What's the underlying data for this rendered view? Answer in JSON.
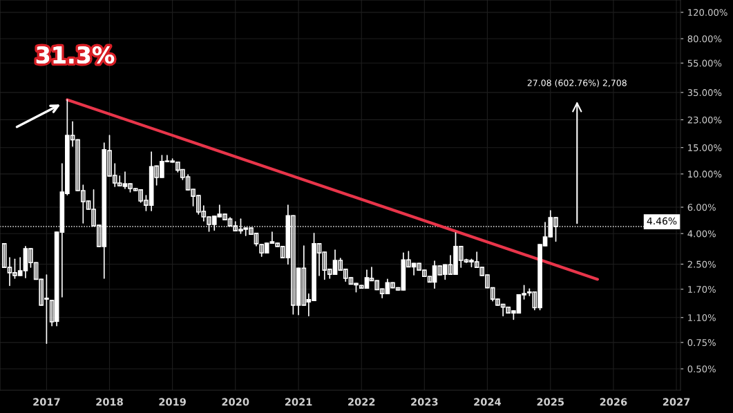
{
  "chart_data": {
    "type": "candlestick",
    "color": "#ffffff",
    "x": [
      "2016-05",
      "2016-06",
      "2016-07",
      "2016-08",
      "2016-09",
      "2016-10",
      "2016-11",
      "2016-12",
      "2017-01",
      "2017-02",
      "2017-03",
      "2017-04",
      "2017-05",
      "2017-06",
      "2017-07",
      "2017-08",
      "2017-09",
      "2017-10",
      "2017-11",
      "2017-12",
      "2018-01",
      "2018-02",
      "2018-03",
      "2018-04",
      "2018-05",
      "2018-06",
      "2018-07",
      "2018-08",
      "2018-09",
      "2018-10",
      "2018-11",
      "2018-12",
      "2019-01",
      "2019-02",
      "2019-03",
      "2019-04",
      "2019-05",
      "2019-06",
      "2019-07",
      "2019-08",
      "2019-09",
      "2019-10",
      "2019-11",
      "2019-12",
      "2020-01",
      "2020-02",
      "2020-03",
      "2020-04",
      "2020-05",
      "2020-06",
      "2020-07",
      "2020-08",
      "2020-09",
      "2020-10",
      "2020-11",
      "2020-12",
      "2021-01",
      "2021-02",
      "2021-03",
      "2021-04",
      "2021-05",
      "2021-06",
      "2021-07",
      "2021-08",
      "2021-09",
      "2021-10",
      "2021-11",
      "2021-12",
      "2022-01",
      "2022-02",
      "2022-03",
      "2022-04",
      "2022-05",
      "2022-06",
      "2022-07",
      "2022-08",
      "2022-09",
      "2022-10",
      "2022-11",
      "2022-12",
      "2023-01",
      "2023-02",
      "2023-03",
      "2023-04",
      "2023-05",
      "2023-06",
      "2023-07",
      "2023-08",
      "2023-09",
      "2023-10",
      "2023-11",
      "2023-12",
      "2024-01",
      "2024-02",
      "2024-03",
      "2024-04",
      "2024-05",
      "2024-06",
      "2024-07",
      "2024-08",
      "2024-09",
      "2024-10",
      "2024-11",
      "2024-12",
      "2025-01",
      "2025-02"
    ],
    "ohlc": [
      [
        3.42,
        3.42,
        2.38,
        2.38
      ],
      [
        2.38,
        2.76,
        1.8,
        2.19
      ],
      [
        2.19,
        2.7,
        2.01,
        2.1
      ],
      [
        2.1,
        2.76,
        2.1,
        2.26
      ],
      [
        2.26,
        3.28,
        2.03,
        3.17
      ],
      [
        3.17,
        3.17,
        2.38,
        2.56
      ],
      [
        2.56,
        2.56,
        1.98,
        1.98
      ],
      [
        1.98,
        1.98,
        1.33,
        1.33
      ],
      [
        1.46,
        2.12,
        0.74,
        1.48
      ],
      [
        1.43,
        1.43,
        0.97,
        1.03
      ],
      [
        1.04,
        4.09,
        0.97,
        4.09
      ],
      [
        4.09,
        11.7,
        1.51,
        7.58
      ],
      [
        7.41,
        31.3,
        7.25,
        18.1
      ],
      [
        18.1,
        22.3,
        15.3,
        16.9
      ],
      [
        16.9,
        16.9,
        7.74,
        7.74
      ],
      [
        7.74,
        8.43,
        4.7,
        6.53
      ],
      [
        6.6,
        6.6,
        5.81,
        5.81
      ],
      [
        5.81,
        7.83,
        4.5,
        4.5
      ],
      [
        4.55,
        4.55,
        3.28,
        3.28
      ],
      [
        3.28,
        16.1,
        2.01,
        14.5
      ],
      [
        14.3,
        18.1,
        9.68,
        9.68
      ],
      [
        9.78,
        11.7,
        8.25,
        8.7
      ],
      [
        8.7,
        9.68,
        8.34,
        8.34
      ],
      [
        8.25,
        10.3,
        7.99,
        8.6
      ],
      [
        8.6,
        8.6,
        7.58,
        7.99
      ],
      [
        7.99,
        7.99,
        7.74,
        7.74
      ],
      [
        7.83,
        7.83,
        6.46,
        6.6
      ],
      [
        6.67,
        7.18,
        5.69,
        6.19
      ],
      [
        6.19,
        14.0,
        5.69,
        11.2
      ],
      [
        11.3,
        11.3,
        8.43,
        9.47
      ],
      [
        9.47,
        13.3,
        9.47,
        12.1
      ],
      [
        12.1,
        13.3,
        12.1,
        12.2
      ],
      [
        12.2,
        12.6,
        12.0,
        12.0
      ],
      [
        12.0,
        12.0,
        10.3,
        10.6
      ],
      [
        10.7,
        10.7,
        9.17,
        9.47
      ],
      [
        9.57,
        9.88,
        7.83,
        7.83
      ],
      [
        7.91,
        7.91,
        6.13,
        7.1
      ],
      [
        7.18,
        7.18,
        5.39,
        5.57
      ],
      [
        5.63,
        6.13,
        4.85,
        5.17
      ],
      [
        5.17,
        5.17,
        4.14,
        4.6
      ],
      [
        4.6,
        5.22,
        4.22,
        5.22
      ],
      [
        5.17,
        6.19,
        5.17,
        5.39
      ],
      [
        5.39,
        5.39,
        4.95,
        4.95
      ],
      [
        5.0,
        5.11,
        4.5,
        4.5
      ],
      [
        4.5,
        4.8,
        4.18,
        4.18
      ],
      [
        4.27,
        5.0,
        4.01,
        4.18
      ],
      [
        4.27,
        4.36,
        3.88,
        4.36
      ],
      [
        4.36,
        4.36,
        3.96,
        3.96
      ],
      [
        4.01,
        4.01,
        3.31,
        3.42
      ],
      [
        3.38,
        3.38,
        2.82,
        2.97
      ],
      [
        2.97,
        3.45,
        2.97,
        3.45
      ],
      [
        3.45,
        4.09,
        3.45,
        3.53
      ],
      [
        3.45,
        3.45,
        3.28,
        3.28
      ],
      [
        3.28,
        3.28,
        2.76,
        2.76
      ],
      [
        2.76,
        6.19,
        2.5,
        5.27
      ],
      [
        5.27,
        5.27,
        1.16,
        1.33
      ],
      [
        1.33,
        2.35,
        1.15,
        2.35
      ],
      [
        2.35,
        3.31,
        1.33,
        1.33
      ],
      [
        1.4,
        1.58,
        1.13,
        1.45
      ],
      [
        1.43,
        4.01,
        1.43,
        3.42
      ],
      [
        3.42,
        3.42,
        2.1,
        2.97
      ],
      [
        3.01,
        3.01,
        1.98,
        2.28
      ],
      [
        2.31,
        2.31,
        2.01,
        2.14
      ],
      [
        2.14,
        3.1,
        2.14,
        2.65
      ],
      [
        2.65,
        2.73,
        2.28,
        2.28
      ],
      [
        2.31,
        2.31,
        1.92,
        2.01
      ],
      [
        2.03,
        2.03,
        1.84,
        1.84
      ],
      [
        1.86,
        1.86,
        1.63,
        1.82
      ],
      [
        1.8,
        1.8,
        1.73,
        1.73
      ],
      [
        1.73,
        2.28,
        1.73,
        2.03
      ],
      [
        2.01,
        2.38,
        1.94,
        1.94
      ],
      [
        1.94,
        1.94,
        1.69,
        1.69
      ],
      [
        1.71,
        1.71,
        1.49,
        1.59
      ],
      [
        1.59,
        1.98,
        1.59,
        1.88
      ],
      [
        1.88,
        1.88,
        1.74,
        1.74
      ],
      [
        1.74,
        1.74,
        1.68,
        1.68
      ],
      [
        1.68,
        2.97,
        1.68,
        2.67
      ],
      [
        2.67,
        3.04,
        2.4,
        2.4
      ],
      [
        2.4,
        2.53,
        2.12,
        2.53
      ],
      [
        2.53,
        2.53,
        2.28,
        2.28
      ],
      [
        2.28,
        2.28,
        2.07,
        2.07
      ],
      [
        2.07,
        2.07,
        1.9,
        1.9
      ],
      [
        1.9,
        2.62,
        1.73,
        2.43
      ],
      [
        2.43,
        2.43,
        2.12,
        2.12
      ],
      [
        2.14,
        2.48,
        1.98,
        2.48
      ],
      [
        2.48,
        2.85,
        2.14,
        2.14
      ],
      [
        2.14,
        4.05,
        2.14,
        3.28
      ],
      [
        3.28,
        3.28,
        2.38,
        2.65
      ],
      [
        2.67,
        2.7,
        2.56,
        2.59
      ],
      [
        2.59,
        2.7,
        2.4,
        2.65
      ],
      [
        2.59,
        3.01,
        2.38,
        2.38
      ],
      [
        2.38,
        2.38,
        2.1,
        2.1
      ],
      [
        2.12,
        2.12,
        1.74,
        1.74
      ],
      [
        1.74,
        1.74,
        1.42,
        1.46
      ],
      [
        1.46,
        1.46,
        1.33,
        1.33
      ],
      [
        1.35,
        1.35,
        1.13,
        1.29
      ],
      [
        1.29,
        1.29,
        1.18,
        1.18
      ],
      [
        1.18,
        1.22,
        1.07,
        1.22
      ],
      [
        1.18,
        1.56,
        1.18,
        1.56
      ],
      [
        1.56,
        1.8,
        1.46,
        1.59
      ],
      [
        1.61,
        1.71,
        1.54,
        1.63
      ],
      [
        1.63,
        1.63,
        1.24,
        1.28
      ],
      [
        1.28,
        3.38,
        1.24,
        3.38
      ],
      [
        3.31,
        4.75,
        3.31,
        3.8
      ],
      [
        3.8,
        5.69,
        3.8,
        5.11
      ],
      [
        5.11,
        5.11,
        3.56,
        4.46
      ]
    ],
    "series": [
      {
        "type": "line",
        "color": "#e8354a",
        "x": [
          "2017-05",
          "2025-10"
        ],
        "values": [
          31.3,
          1.98
        ]
      }
    ],
    "log": "y",
    "ylim": [
      0.36,
      145
    ],
    "yticks": [
      {
        "value": 120,
        "label": "120.00%"
      },
      {
        "value": 80,
        "label": "80.00%"
      },
      {
        "value": 55,
        "label": "55.00%"
      },
      {
        "value": 35,
        "label": "35.00%"
      },
      {
        "value": 23,
        "label": "23.00%"
      },
      {
        "value": 15,
        "label": "15.00%"
      },
      {
        "value": 10,
        "label": "10.00%"
      },
      {
        "value": 6,
        "label": "6.00%"
      },
      {
        "value": 4,
        "label": "4.00%"
      },
      {
        "value": 2.5,
        "label": "2.50%"
      },
      {
        "value": 1.7,
        "label": "1.70%"
      },
      {
        "value": 1.1,
        "label": "1.10%"
      },
      {
        "value": 0.75,
        "label": "0.75%"
      },
      {
        "value": 0.5,
        "label": "0.50%"
      }
    ],
    "xlim": [
      "2016-04-06",
      "2027-01-25"
    ],
    "xticks": [
      "2017",
      "2018",
      "2019",
      "2020",
      "2021",
      "2022",
      "2023",
      "2024",
      "2025",
      "2026",
      "2027"
    ],
    "grid": true,
    "ref_lines": [
      {
        "axis": "y",
        "value": 4.46,
        "label": "4.46%",
        "color": "#ffffff",
        "line_style": "dotted"
      }
    ],
    "annotations": [
      {
        "text": "31.3%",
        "x": "2017-05",
        "y": 31.3
      },
      "27.08 (602.76%) 2,708"
    ]
  }
}
